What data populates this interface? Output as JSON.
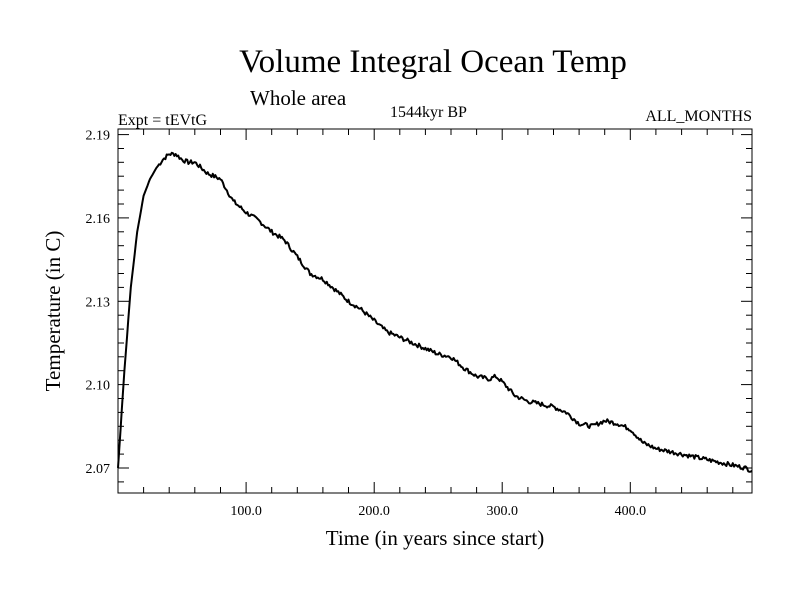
{
  "header": {
    "title": "Volume Integral Ocean Temp",
    "subtitle": "Whole area",
    "experiment": "Expt = tEVtG",
    "date": "1544kyr BP",
    "months": "ALL_MONTHS"
  },
  "chart_data": {
    "type": "line",
    "title": "Volume Integral Ocean Temp",
    "subtitle": "Whole area",
    "xlabel": "Time (in years since start)",
    "ylabel": "Temperature (in C)",
    "xlim": [
      0,
      495
    ],
    "ylim": [
      2.061,
      2.192
    ],
    "x_ticks": [
      100,
      200,
      300,
      400
    ],
    "x_tick_labels": [
      "100.0",
      "200.0",
      "300.0",
      "400.0"
    ],
    "y_ticks": [
      2.07,
      2.1,
      2.13,
      2.16,
      2.19
    ],
    "y_tick_labels": [
      "2.07",
      "2.10",
      "2.13",
      "2.16",
      "2.19"
    ],
    "grid": false,
    "series": [
      {
        "name": "Volume Integral Ocean Temp",
        "x": [
          0,
          5,
          10,
          15,
          20,
          25,
          30,
          35,
          40,
          45,
          50,
          55,
          60,
          65,
          70,
          75,
          80,
          85,
          90,
          95,
          100,
          110,
          120,
          130,
          140,
          150,
          160,
          170,
          180,
          190,
          200,
          210,
          220,
          230,
          240,
          250,
          260,
          270,
          280,
          290,
          295,
          300,
          310,
          320,
          330,
          340,
          350,
          360,
          370,
          380,
          390,
          400,
          410,
          420,
          430,
          440,
          450,
          460,
          470,
          480,
          490,
          495
        ],
        "y": [
          2.07,
          2.105,
          2.135,
          2.155,
          2.168,
          2.174,
          2.178,
          2.181,
          2.183,
          2.183,
          2.181,
          2.18,
          2.18,
          2.178,
          2.176,
          2.175,
          2.174,
          2.17,
          2.166,
          2.164,
          2.162,
          2.159,
          2.155,
          2.152,
          2.146,
          2.14,
          2.138,
          2.134,
          2.13,
          2.127,
          2.123,
          2.119,
          2.117,
          2.115,
          2.113,
          2.111,
          2.11,
          2.106,
          2.103,
          2.102,
          2.103,
          2.101,
          2.096,
          2.094,
          2.093,
          2.092,
          2.09,
          2.086,
          2.085,
          2.087,
          2.086,
          2.084,
          2.079,
          2.077,
          2.076,
          2.075,
          2.074,
          2.073,
          2.072,
          2.071,
          2.07,
          2.069
        ]
      }
    ]
  }
}
